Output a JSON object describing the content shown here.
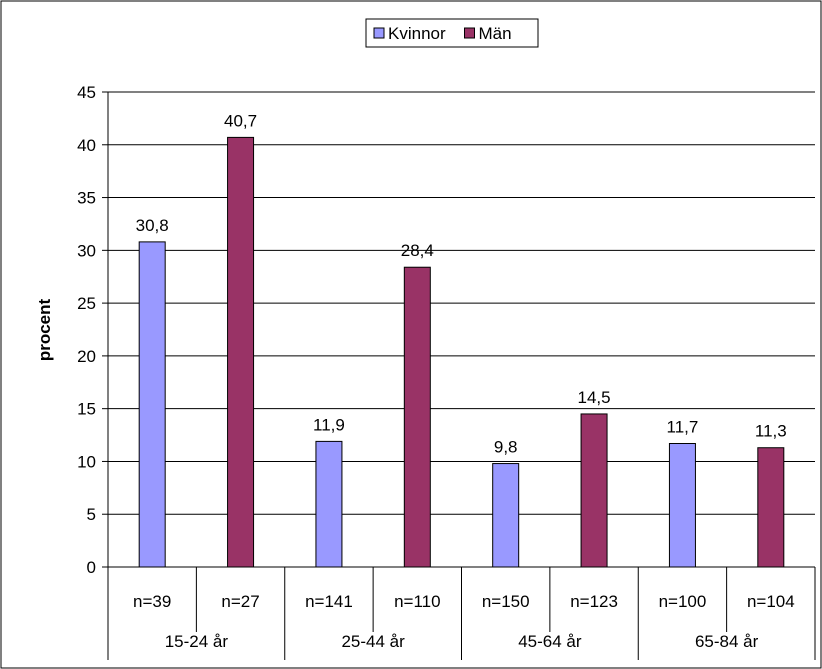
{
  "chart_data": {
    "type": "bar",
    "ylabel": "procent",
    "ylim": [
      0,
      45
    ],
    "yticks": [
      0,
      5,
      10,
      15,
      20,
      25,
      30,
      35,
      40,
      45
    ],
    "grid": true,
    "legend_position": "top-center",
    "groups": [
      "15-24 år",
      "25-44 år",
      "45-64 år",
      "65-84 år"
    ],
    "categories": [
      "n=39",
      "n=27",
      "n=141",
      "n=110",
      "n=150",
      "n=123",
      "n=100",
      "n=104"
    ],
    "series": [
      {
        "name": "Kvinnor",
        "color": "#9999ff",
        "values": [
          30.8,
          null,
          11.9,
          null,
          9.8,
          null,
          11.7,
          null
        ],
        "labels": [
          "30,8",
          "",
          "11,9",
          "",
          "9,8",
          "",
          "11,7",
          ""
        ]
      },
      {
        "name": "Män",
        "color": "#993366",
        "values": [
          null,
          40.7,
          null,
          28.4,
          null,
          14.5,
          null,
          11.3
        ],
        "labels": [
          "",
          "40,7",
          "",
          "28,4",
          "",
          "14,5",
          "",
          "11,3"
        ]
      }
    ]
  }
}
